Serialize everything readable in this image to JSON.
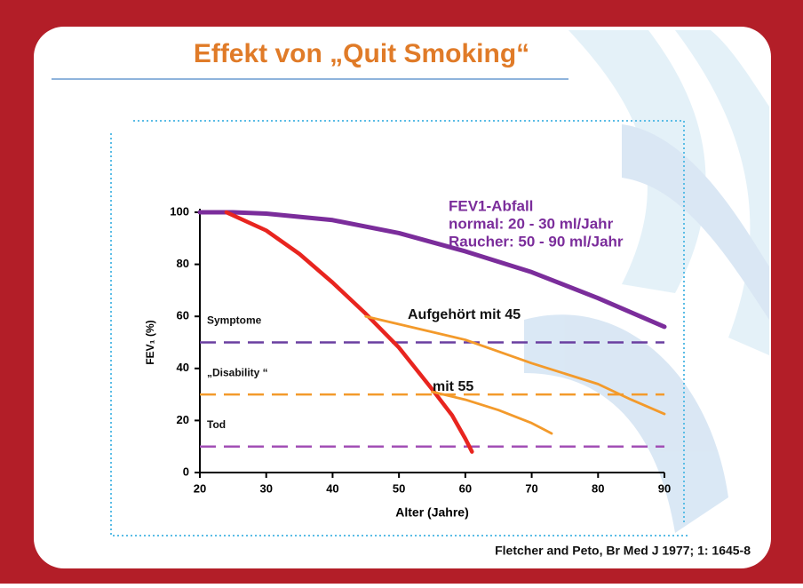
{
  "title": "Effekt von „Quit Smoking“",
  "source": "Fletcher and Peto, Br Med J 1977; 1: 1645-8",
  "chart_data": {
    "type": "line",
    "x_label": "Alter (Jahre)",
    "y_label": "FEV₁ (%)",
    "xlim": [
      20,
      90
    ],
    "xticks": [
      20,
      30,
      40,
      50,
      60,
      70,
      80,
      90
    ],
    "ylim": [
      0,
      100
    ],
    "yticks": [
      0,
      20,
      40,
      60,
      80,
      100
    ],
    "grid": false,
    "series": [
      {
        "color": "#7b2d9b",
        "x": [
          20,
          25,
          30,
          40,
          50,
          60,
          70,
          80,
          90
        ],
        "values": [
          100,
          100,
          99.5,
          97,
          92,
          85,
          77,
          67,
          56
        ]
      },
      {
        "color": "#e8251f",
        "x": [
          24,
          30,
          35,
          40,
          45,
          50,
          55,
          58,
          60,
          61
        ],
        "values": [
          100,
          93,
          84,
          73,
          61,
          48,
          32,
          22,
          13,
          8
        ]
      },
      {
        "color": "#f39a2b",
        "x": [
          45,
          50,
          60,
          70,
          80,
          85,
          90
        ],
        "values": [
          60,
          57,
          51,
          42,
          34,
          28,
          22.5
        ]
      },
      {
        "color": "#f39a2b",
        "x": [
          55,
          60,
          65,
          70,
          73
        ],
        "values": [
          31,
          28,
          24,
          19,
          15
        ]
      }
    ],
    "thresholds": [
      {
        "label": "Symptome",
        "value": 50,
        "color": "#6a3fa0"
      },
      {
        "label": "„Disability “",
        "value": 30,
        "color": "#f39a2b"
      },
      {
        "label": "Tod",
        "value": 10,
        "color": "#a24fb5"
      }
    ],
    "annotations": [
      {
        "text": "FEV1-Abfall",
        "color": "#7b2d9b"
      },
      {
        "text": "normal: 20 - 30 ml/Jahr",
        "color": "#7b2d9b"
      },
      {
        "text": "Raucher: 50 - 90 ml/Jahr",
        "color": "#7b2d9b"
      },
      {
        "text": "Aufgehört mit 45",
        "color": "#111111"
      },
      {
        "text": "mit 55",
        "color": "#111111"
      }
    ]
  }
}
